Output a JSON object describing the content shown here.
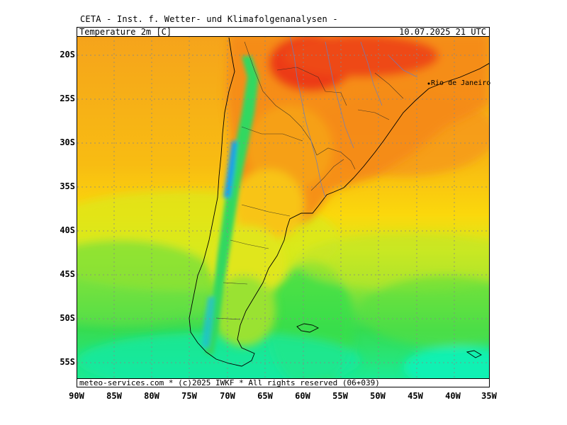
{
  "header": {
    "source": "CETA - Inst. f. Wetter- und Klimafolgenanalysen -"
  },
  "map": {
    "variable_label": "Temperature_2m [C]",
    "valid_time": "10.07.2025 21 UTC",
    "footer": "meteo-services.com * (c)2025 IWKF * All rights reserved (06+039)",
    "city": "Rio de Janeiro",
    "lat_labels": [
      "20S",
      "25S",
      "30S",
      "35S",
      "40S",
      "45S",
      "50S",
      "55S"
    ],
    "lon_labels": [
      "90W",
      "85W",
      "80W",
      "75W",
      "70W",
      "65W",
      "60W",
      "55W",
      "50W",
      "45W",
      "40W",
      "35W"
    ],
    "colors": {
      "hot": "#ee3a10",
      "warm": "#f59a1a",
      "mild": "#fbd20a",
      "cool": "#c8e81e",
      "cold": "#2edc4a",
      "colder": "#10f09a",
      "frost": "#1ab4f0"
    }
  }
}
